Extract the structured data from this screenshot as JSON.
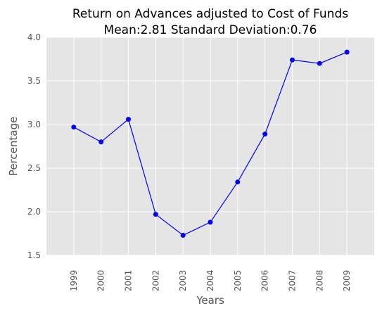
{
  "chart_data": {
    "type": "line",
    "title": "Return on Advances adjusted to Cost of Funds",
    "subtitle": "Mean:2.81 Standard Deviation:0.76",
    "xlabel": "Years",
    "ylabel": "Percentage",
    "x": [
      "1999",
      "2000",
      "2001",
      "2002",
      "2003",
      "2004",
      "2005",
      "2006",
      "2007",
      "2008",
      "2009"
    ],
    "series": [
      {
        "values": [
          2.97,
          2.8,
          3.06,
          1.97,
          1.73,
          1.88,
          2.34,
          2.89,
          3.74,
          3.7,
          3.83
        ]
      }
    ],
    "xlim": [
      1998,
      2010
    ],
    "ylim": [
      1.5,
      4.0
    ],
    "yticks": [
      "1.5",
      "2.0",
      "2.5",
      "3.0",
      "3.5",
      "4.0"
    ],
    "grid": true,
    "style": {
      "background": "#e5e5e5",
      "grid_color": "#ffffff",
      "line_color": "#0000ff",
      "marker_color": "#0000ff"
    }
  }
}
